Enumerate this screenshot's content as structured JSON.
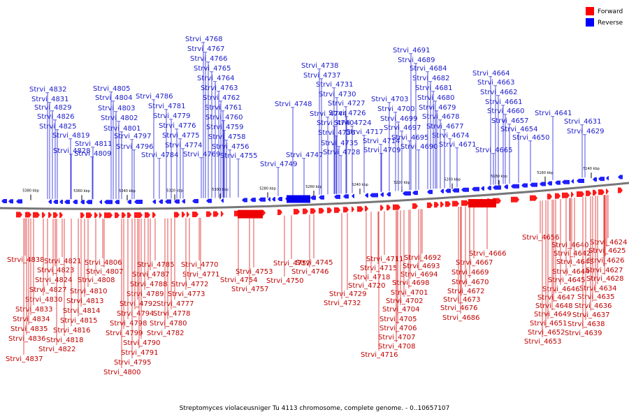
{
  "caption": "Streptomyces violaceusniger Tu 4113 chromosome, complete genome. - 0..10657107",
  "legend": [
    {
      "label": "Forward",
      "color": "#ff0000"
    },
    {
      "label": "Reverse",
      "color": "#0000ff"
    }
  ],
  "ticks": [
    "5380 kbp",
    "5360 kbp",
    "5340 kbp",
    "5320 kbp",
    "5300 kbp",
    "5280 kbp",
    "5260 kbp",
    "5240 kbp",
    "5220 kbp",
    "5200 kbp",
    "5180 kbp",
    "5160 kbp",
    "5140 kbp"
  ],
  "forward_labels": [
    "Strvi_4838",
    "Strvi_4823",
    "Strvi_4824",
    "Strvi_4827",
    "Strvi_4830",
    "Strvi_4833",
    "Strvi_4834",
    "Strvi_4835",
    "Strvi_4836",
    "Strvi_4837",
    "Strvi_4821",
    "Strvi_4822",
    "Strvi_4818",
    "Strvi_4816",
    "Strvi_4815",
    "Strvi_4814",
    "Strvi_4813",
    "Strvi_4810",
    "Strvi_4808",
    "Strvi_4807",
    "Strvi_4806",
    "Strvi_4785",
    "Strvi_4787",
    "Strvi_4788",
    "Strvi_4789",
    "Strvi_4792",
    "Strvi_4794",
    "Strvi_4798",
    "Strvi_4799",
    "Strvi_4790",
    "Strvi_4791",
    "Strvi_4795",
    "Strvi_4800",
    "Strvi_4770",
    "Strvi_4771",
    "Strvi_4772",
    "Strvi_4773",
    "Strvi_4777",
    "Strvi_4778",
    "Strvi_4780",
    "Strvi_4782",
    "Strvi_4752",
    "Strvi_4753",
    "Strvi_4754",
    "Strvi_4757",
    "Strvi_4750",
    "Strvi_4745",
    "Strvi_4746",
    "Strvi_4729",
    "Strvi_4732",
    "Strvi_4711",
    "Strvi_4715",
    "Strvi_4718",
    "Strvi_4720",
    "Strvi_4701",
    "Strvi_4702",
    "Strvi_4704",
    "Strvi_4705",
    "Strvi_4706",
    "Strvi_4707",
    "Strvi_4708",
    "Strvi_4716",
    "Strvi_4692",
    "Strvi_4693",
    "Strvi_4694",
    "Strvi_4698",
    "Strvi_4686",
    "Strvi_4666",
    "Strvi_4667",
    "Strvi_4669",
    "Strvi_4670",
    "Strvi_4672",
    "Strvi_4673",
    "Strvi_4676",
    "Strvi_4656",
    "Strvi_4640",
    "Strvi_4642",
    "Strvi_4643",
    "Strvi_4644",
    "Strvi_4645",
    "Strvi_4646",
    "Strvi_4647",
    "Strvi_4648",
    "Strvi_4649",
    "Strvi_4651",
    "Strvi_4652",
    "Strvi_4653",
    "Strvi_4624",
    "Strvi_4625",
    "Strvi_4626",
    "Strvi_4627",
    "Strvi_4628",
    "Strvi_4634",
    "Strvi_4635",
    "Strvi_4636",
    "Strvi_4637",
    "Strvi_4638",
    "Strvi_4639"
  ],
  "reverse_labels": [
    "Strvi_4832",
    "Strvi_4831",
    "Strvi_4829",
    "Strvi_4826",
    "Strvi_4825",
    "Strvi_4819",
    "Strvi_4828",
    "Strvi_4805",
    "Strvi_4804",
    "Strvi_4803",
    "Strvi_4802",
    "Strvi_4801",
    "Strvi_4797",
    "Strvi_4796",
    "Strvi_4811",
    "Strvi_4809",
    "Strvi_4786",
    "Strvi_4781",
    "Strvi_4779",
    "Strvi_4776",
    "Strvi_4775",
    "Strvi_4774",
    "Strvi_4784",
    "Strvi_4768",
    "Strvi_4767",
    "Strvi_4766",
    "Strvi_4765",
    "Strvi_4764",
    "Strvi_4763",
    "Strvi_4762",
    "Strvi_4761",
    "Strvi_4760",
    "Strvi_4759",
    "Strvi_4758",
    "Strvi_4756",
    "Strvi_4755",
    "Strvi_4769",
    "Strvi_4748",
    "Strvi_4749",
    "Strvi_4747",
    "Strvi_4738",
    "Strvi_4737",
    "Strvi_4731",
    "Strvi_4730",
    "Strvi_4727",
    "Strvi_4726",
    "Strvi_4744",
    "Strvi_4740",
    "Strvi_4736",
    "Strvi_4735",
    "Strvi_4724",
    "Strvi_4728",
    "Strvi_4717",
    "Strvi_4714",
    "Strvi_4709",
    "Strvi_4703",
    "Strvi_4700",
    "Strvi_4699",
    "Strvi_4697",
    "Strvi_4695",
    "Strvi_4690",
    "Strvi_4691",
    "Strvi_4689",
    "Strvi_4684",
    "Strvi_4682",
    "Strvi_4681",
    "Strvi_4680",
    "Strvi_4679",
    "Strvi_4678",
    "Strvi_4677",
    "Strvi_4674",
    "Strvi_4671",
    "Strvi_4664",
    "Strvi_4663",
    "Strvi_4662",
    "Strvi_4661",
    "Strvi_4660",
    "Strvi_4657",
    "Strvi_4654",
    "Strvi_4650",
    "Strvi_4665",
    "Strvi_4641",
    "Strvi_4631",
    "Strvi_4629"
  ]
}
